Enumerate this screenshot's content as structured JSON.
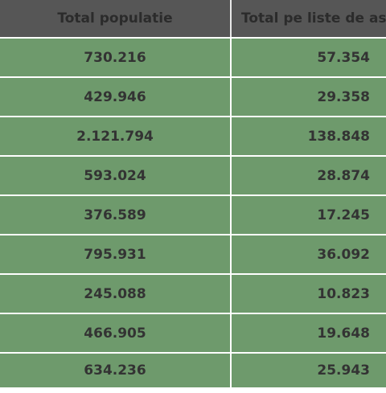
{
  "table": {
    "headers": [
      "Total populatie",
      "Total pe liste de ast"
    ],
    "rows": [
      [
        "730.216",
        "57.354"
      ],
      [
        "429.946",
        "29.358"
      ],
      [
        "2.121.794",
        "138.848"
      ],
      [
        "593.024",
        "28.874"
      ],
      [
        "376.589",
        "17.245"
      ],
      [
        "795.931",
        "36.092"
      ],
      [
        "245.088",
        "10.823"
      ],
      [
        "466.905",
        "19.648"
      ],
      [
        "634.236",
        "25.943"
      ]
    ]
  },
  "colors": {
    "header_bg": "#565656",
    "header_text": "#2b2b2b",
    "cell_bg": "#6e9a6c",
    "cell_text": "#333333",
    "grid": "#ffffff"
  }
}
